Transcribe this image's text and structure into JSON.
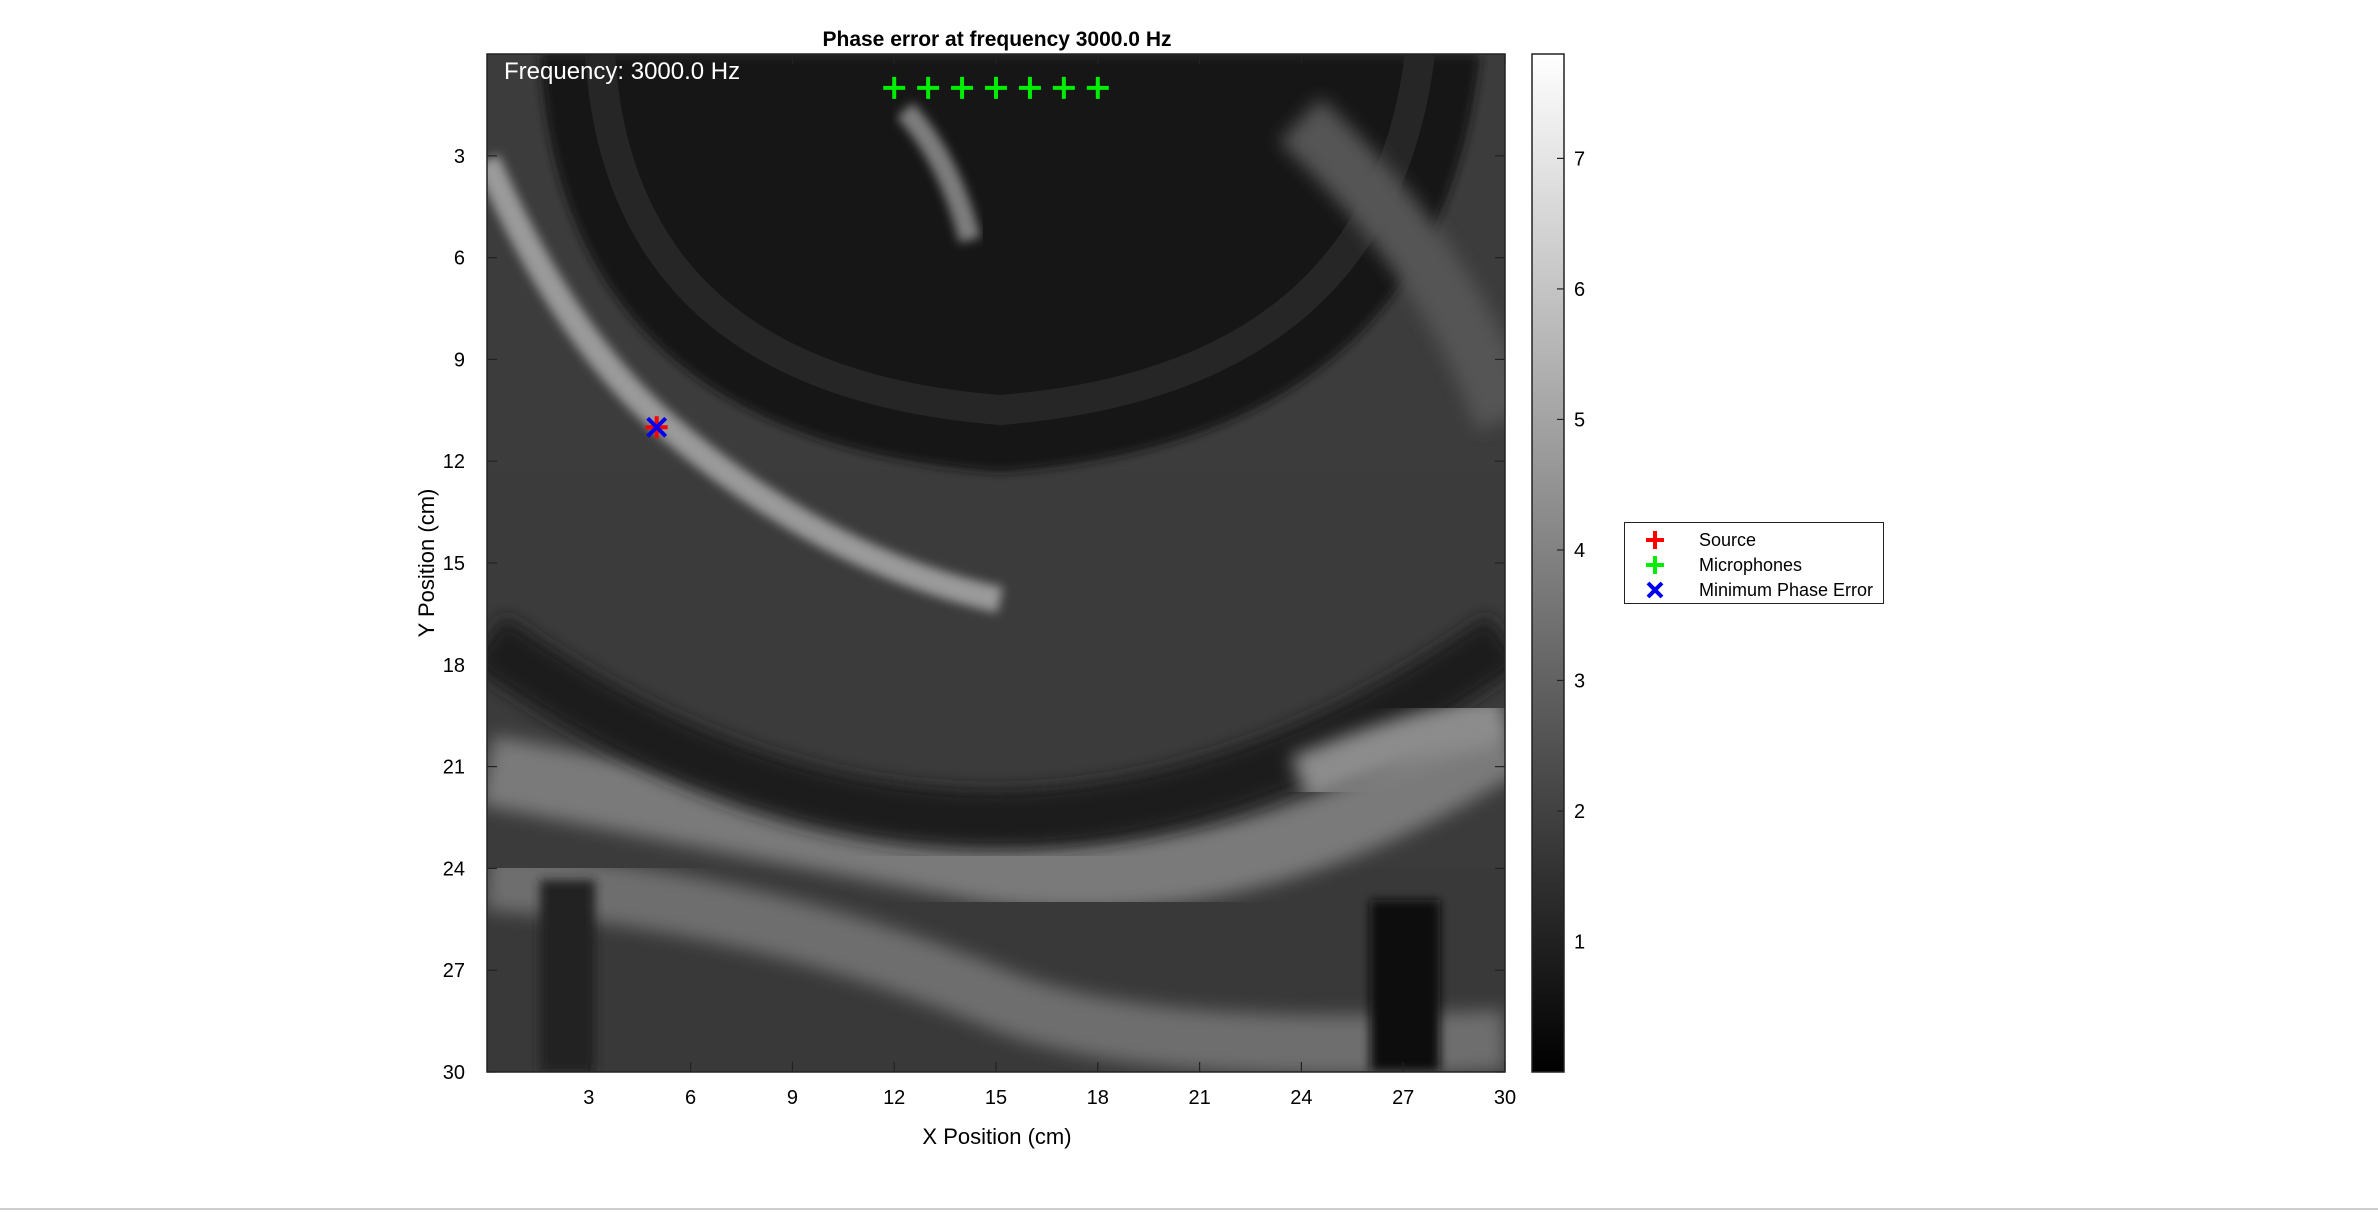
{
  "chart_data": {
    "type": "heatmap",
    "title": "Phase error at frequency 3000.0 Hz",
    "annotation": "Frequency: 3000.0 Hz",
    "xlabel": "X Position (cm)",
    "ylabel": "Y Position (cm)",
    "xlim": [
      0,
      30
    ],
    "ylim": [
      0,
      30
    ],
    "y_reversed": true,
    "xticks": [
      "3",
      "6",
      "9",
      "12",
      "15",
      "18",
      "21",
      "24",
      "27",
      "30"
    ],
    "yticks": [
      "3",
      "6",
      "9",
      "12",
      "15",
      "18",
      "21",
      "24",
      "27",
      "30"
    ],
    "colormap": "gray",
    "color_range": [
      0,
      7.8
    ],
    "colorbar_ticks": [
      "1",
      "2",
      "3",
      "4",
      "5",
      "6",
      "7"
    ],
    "source": {
      "x": 5,
      "y": 11,
      "color": "#ff0000",
      "marker": "plus"
    },
    "microphones": {
      "color": "#00ee00",
      "marker": "plus",
      "points": [
        {
          "x": 12,
          "y": 1
        },
        {
          "x": 13,
          "y": 1
        },
        {
          "x": 14,
          "y": 1
        },
        {
          "x": 15,
          "y": 1
        },
        {
          "x": 16,
          "y": 1
        },
        {
          "x": 17,
          "y": 1
        },
        {
          "x": 18,
          "y": 1
        }
      ]
    },
    "minimum_phase_error": {
      "x": 5,
      "y": 11,
      "color": "#0000ee",
      "marker": "x"
    },
    "legend": {
      "placement": "outside-right",
      "entries": [
        {
          "label": "Source",
          "color": "#ff0000",
          "marker": "plus"
        },
        {
          "label": "Microphones",
          "color": "#00ee00",
          "marker": "plus"
        },
        {
          "label": "Minimum Phase Error",
          "color": "#0000ee",
          "marker": "x"
        }
      ]
    }
  }
}
